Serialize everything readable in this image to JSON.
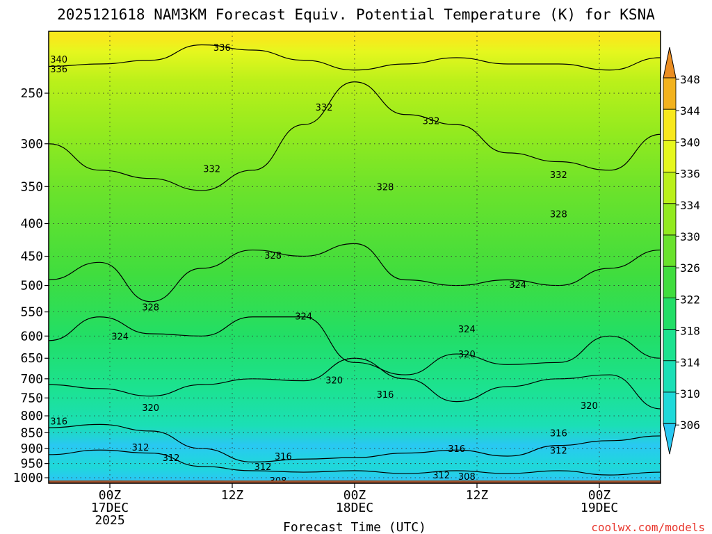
{
  "chart_data": {
    "type": "heatmap",
    "title": "2025121618 NAM3KM Forecast Equiv. Potential Temperature (K) for KSNA",
    "xlabel": "Forecast Time (UTC)",
    "ylabel": "",
    "credit": "coolwx.com/models",
    "x_ticks": [
      {
        "hours": 6,
        "l1": "00Z",
        "l2": "17DEC",
        "l3": "2025"
      },
      {
        "hours": 18,
        "l1": "12Z",
        "l2": "",
        "l3": ""
      },
      {
        "hours": 30,
        "l1": "00Z",
        "l2": "18DEC",
        "l3": ""
      },
      {
        "hours": 42,
        "l1": "12Z",
        "l2": "",
        "l3": ""
      },
      {
        "hours": 54,
        "l1": "00Z",
        "l2": "19DEC",
        "l3": ""
      }
    ],
    "xlim_hours": [
      0,
      60
    ],
    "y_ticks_hpa": [
      "250",
      "300",
      "350",
      "400",
      "450",
      "500",
      "550",
      "600",
      "650",
      "700",
      "750",
      "800",
      "850",
      "900",
      "950",
      "1000"
    ],
    "ylim_hpa": [
      1020,
      200
    ],
    "surface_hpa": 1010,
    "colorbar": {
      "levels": [
        "306",
        "310",
        "314",
        "318",
        "322",
        "326",
        "330",
        "334",
        "336",
        "340",
        "344",
        "348"
      ],
      "colors": [
        "#29c8f2",
        "#1fd9d9",
        "#1bdfb6",
        "#1ce28f",
        "#22de66",
        "#40dd3e",
        "#69e22c",
        "#92ea1f",
        "#baf01a",
        "#e6f71e",
        "#f8e81c",
        "#f2b21e",
        "#eb8e22"
      ]
    },
    "profile": [
      {
        "p": 1005,
        "theta_e": 307,
        "color": "#29c8f2"
      },
      {
        "p": 960,
        "theta_e": 311,
        "color": "#1fd9d9"
      },
      {
        "p": 890,
        "theta_e": 309,
        "color": "#29c8f2"
      },
      {
        "p": 830,
        "theta_e": 315,
        "color": "#1bdfb6"
      },
      {
        "p": 720,
        "theta_e": 318,
        "color": "#1ce28f"
      },
      {
        "p": 600,
        "theta_e": 322,
        "color": "#22de66"
      },
      {
        "p": 480,
        "theta_e": 326,
        "color": "#40dd3e"
      },
      {
        "p": 360,
        "theta_e": 330,
        "color": "#69e22c"
      },
      {
        "p": 290,
        "theta_e": 333,
        "color": "#92ea1f"
      },
      {
        "p": 240,
        "theta_e": 336,
        "color": "#baf01a"
      },
      {
        "p": 215,
        "theta_e": 340,
        "color": "#e6f71e"
      },
      {
        "p": 205,
        "theta_e": 344,
        "color": "#f8e81c"
      }
    ],
    "contours": [
      {
        "level": 308,
        "p": [
          1012,
          1011,
          1012,
          1011,
          1012,
          1011,
          1011,
          1012,
          1011,
          1012,
          1011,
          1012,
          1011
        ]
      },
      {
        "level": 312,
        "p": [
          920,
          905,
          915,
          960,
          975,
          980,
          975,
          985,
          975,
          985,
          975,
          990,
          980
        ]
      },
      {
        "level": 316,
        "p": [
          835,
          825,
          845,
          900,
          945,
          935,
          930,
          915,
          905,
          925,
          890,
          875,
          860
        ]
      },
      {
        "level": 320,
        "p": [
          715,
          725,
          745,
          715,
          700,
          705,
          650,
          700,
          760,
          720,
          700,
          690,
          780
        ]
      },
      {
        "level": 324,
        "p": [
          610,
          560,
          595,
          600,
          560,
          560,
          660,
          690,
          640,
          665,
          660,
          600,
          650
        ]
      },
      {
        "level": 328,
        "p": [
          490,
          460,
          530,
          470,
          440,
          450,
          430,
          490,
          500,
          490,
          500,
          470,
          440
        ]
      },
      {
        "level": 332,
        "p": [
          300,
          330,
          340,
          355,
          330,
          280,
          240,
          270,
          280,
          310,
          320,
          330,
          290
        ]
      },
      {
        "level": 336,
        "p": [
          227,
          225,
          222,
          210,
          214,
          222,
          230,
          225,
          220,
          225,
          225,
          230,
          220
        ]
      }
    ],
    "contour_labels": [
      {
        "text": "336",
        "hours": 17,
        "p": 212
      },
      {
        "text": "340",
        "hours": 1,
        "p": 221
      },
      {
        "text": "336",
        "hours": 1,
        "p": 229
      },
      {
        "text": "332",
        "hours": 27,
        "p": 263
      },
      {
        "text": "332",
        "hours": 37.5,
        "p": 276
      },
      {
        "text": "332",
        "hours": 16,
        "p": 328
      },
      {
        "text": "332",
        "hours": 50,
        "p": 335
      },
      {
        "text": "328",
        "hours": 33,
        "p": 350
      },
      {
        "text": "328",
        "hours": 50,
        "p": 386
      },
      {
        "text": "328",
        "hours": 22,
        "p": 448
      },
      {
        "text": "328",
        "hours": 10,
        "p": 540
      },
      {
        "text": "324",
        "hours": 46,
        "p": 498
      },
      {
        "text": "324",
        "hours": 25,
        "p": 558
      },
      {
        "text": "324",
        "hours": 41,
        "p": 585
      },
      {
        "text": "324",
        "hours": 7,
        "p": 600
      },
      {
        "text": "320",
        "hours": 41,
        "p": 640
      },
      {
        "text": "320",
        "hours": 28,
        "p": 703
      },
      {
        "text": "320",
        "hours": 10,
        "p": 776
      },
      {
        "text": "320",
        "hours": 53,
        "p": 770
      },
      {
        "text": "316",
        "hours": 33,
        "p": 740
      },
      {
        "text": "316",
        "hours": 1,
        "p": 815
      },
      {
        "text": "316",
        "hours": 50,
        "p": 850
      },
      {
        "text": "316",
        "hours": 40,
        "p": 900
      },
      {
        "text": "316",
        "hours": 23,
        "p": 925
      },
      {
        "text": "312",
        "hours": 9,
        "p": 895
      },
      {
        "text": "312",
        "hours": 12,
        "p": 930
      },
      {
        "text": "312",
        "hours": 50,
        "p": 905
      },
      {
        "text": "312",
        "hours": 21,
        "p": 960
      },
      {
        "text": "312",
        "hours": 38.5,
        "p": 990
      },
      {
        "text": "308",
        "hours": 41,
        "p": 995
      },
      {
        "text": "308",
        "hours": 22.5,
        "p": 1010
      }
    ]
  }
}
